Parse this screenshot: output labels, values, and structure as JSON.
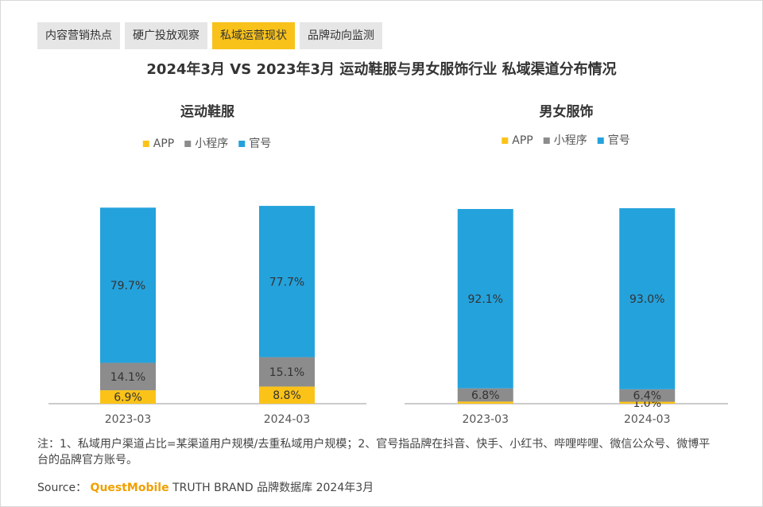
{
  "tabs": [
    "内容营销热点",
    "硬广投放观察",
    "私域运营现状",
    "品牌动向监测"
  ],
  "active_tab": 2,
  "title": "2024年3月 VS 2023年3月 运动鞋服与男女服饰行业 私域渠道分布情况",
  "chart_data": [
    {
      "type": "bar",
      "stacked": true,
      "title": "运动鞋服",
      "categories": [
        "2023-03",
        "2024-03"
      ],
      "series": [
        {
          "name": "APP",
          "color": "#fbc318",
          "values": [
            6.9,
            8.8
          ],
          "value_labels": [
            "6.9%",
            "8.8%"
          ]
        },
        {
          "name": "小程序",
          "color": "#8c8c8c",
          "values": [
            14.1,
            15.1
          ],
          "value_labels": [
            "14.1%",
            "15.1%"
          ]
        },
        {
          "name": "官号",
          "color": "#24a2dc",
          "values": [
            79.7,
            77.7
          ],
          "value_labels": [
            "79.7%",
            "77.7%"
          ]
        }
      ]
    },
    {
      "type": "bar",
      "stacked": true,
      "title": "男女服饰",
      "categories": [
        "2023-03",
        "2024-03"
      ],
      "series": [
        {
          "name": "APP",
          "color": "#fbc318",
          "values": [
            1.1,
            1.0
          ],
          "value_labels": [
            null,
            "1.0%"
          ]
        },
        {
          "name": "小程序",
          "color": "#8c8c8c",
          "values": [
            6.8,
            6.4
          ],
          "value_labels": [
            "6.8%",
            "6.4%"
          ]
        },
        {
          "name": "官号",
          "color": "#24a2dc",
          "values": [
            92.1,
            93.0
          ],
          "value_labels": [
            "92.1%",
            "93.0%"
          ]
        }
      ]
    }
  ],
  "note": "注：1、私域用户渠道占比=某渠道用户规模/去重私域用户规模；2、官号指品牌在抖音、快手、小红书、哔哩哔哩、微信公众号、微博平台的品牌官方账号。",
  "source": {
    "label": "Source：",
    "brand": "QuestMobile",
    "text": "TRUTH BRAND 品牌数据库 2024年3月"
  }
}
